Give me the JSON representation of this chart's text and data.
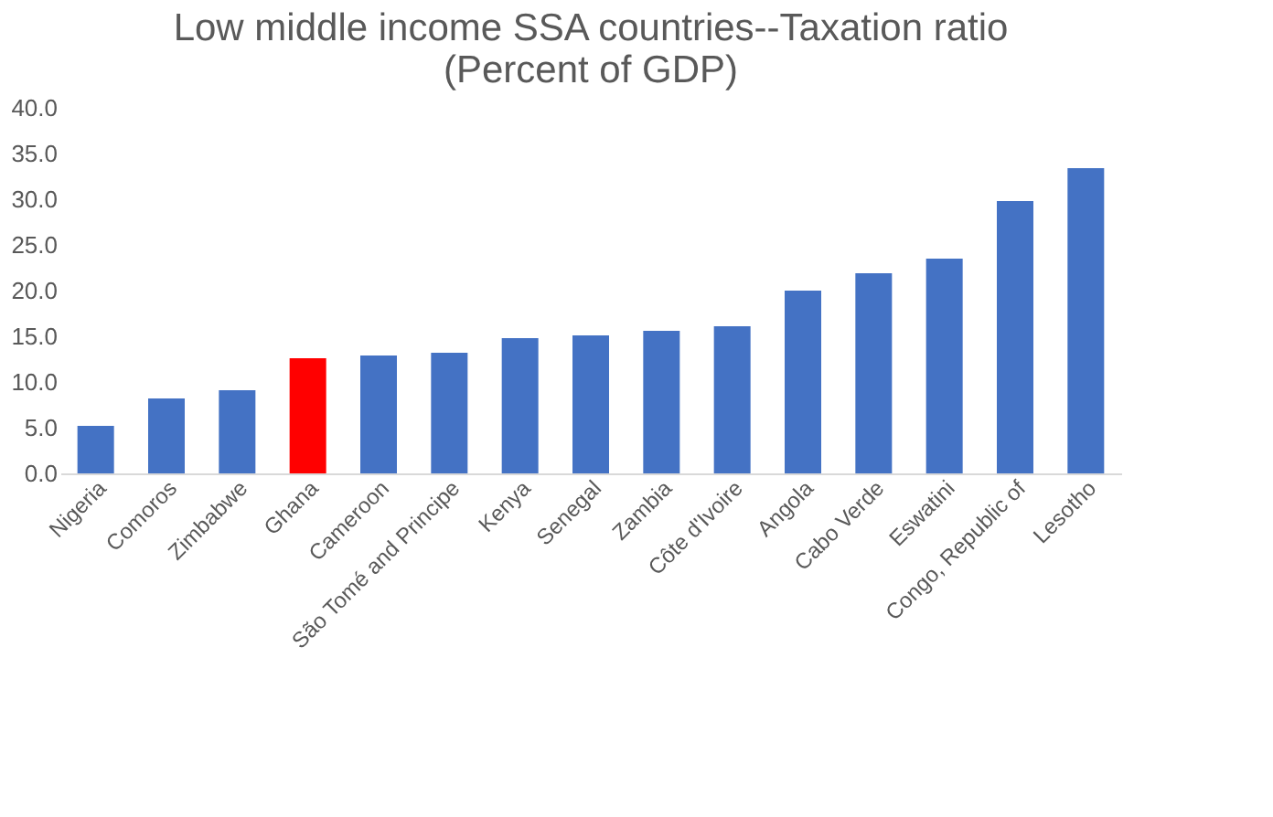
{
  "chart_data": {
    "type": "bar",
    "title": [
      "Low middle income SSA countries--Taxation ratio",
      "(Percent of GDP)"
    ],
    "categories": [
      "Nigeria",
      "Comoros",
      "Zimbabwe",
      "Ghana",
      "Cameroon",
      "São Tomé and Principe",
      "Kenya",
      "Senegal",
      "Zambia",
      "Côte d'Ivoire",
      "Angola",
      "Cabo Verde",
      "Eswatini",
      "Congo, Republic of",
      "Lesotho"
    ],
    "values": [
      5.2,
      8.2,
      9.1,
      12.6,
      12.9,
      13.2,
      14.8,
      15.1,
      15.6,
      16.1,
      20.0,
      21.9,
      23.5,
      29.8,
      33.4
    ],
    "colors": [
      "#4472c4",
      "#4472c4",
      "#4472c4",
      "#ff0000",
      "#4472c4",
      "#4472c4",
      "#4472c4",
      "#4472c4",
      "#4472c4",
      "#4472c4",
      "#4472c4",
      "#4472c4",
      "#4472c4",
      "#4472c4",
      "#4472c4"
    ],
    "ylim": [
      0,
      40
    ],
    "yticks": [
      {
        "value": 0,
        "label": "0.0"
      },
      {
        "value": 5,
        "label": "5.0"
      },
      {
        "value": 10,
        "label": "10.0"
      },
      {
        "value": 15,
        "label": "15.0"
      },
      {
        "value": 20,
        "label": "20.0"
      },
      {
        "value": 25,
        "label": "25.0"
      },
      {
        "value": 30,
        "label": "30.0"
      },
      {
        "value": 35,
        "label": "35.0"
      },
      {
        "value": 40,
        "label": "40.0"
      }
    ],
    "grid": false
  }
}
